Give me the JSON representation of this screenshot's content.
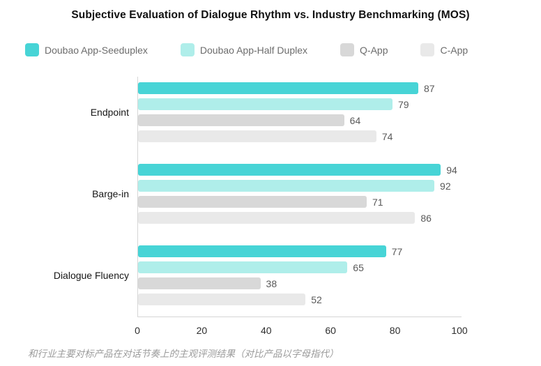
{
  "title": "Subjective Evaluation of Dialogue Rhythm vs. Industry Benchmarking (MOS)",
  "caption": "和行业主要对标产品在对话节奏上的主观评测结果（对比产品以字母指代）",
  "chart_data": {
    "type": "bar",
    "orientation": "horizontal",
    "title": "Subjective Evaluation of Dialogue Rhythm vs. Industry Benchmarking (MOS)",
    "categories": [
      "Endpoint",
      "Barge-in",
      "Dialogue Fluency"
    ],
    "series": [
      {
        "name": "Doubao App-Seeduplex",
        "color": "#47d4d6",
        "values": [
          87,
          94,
          77
        ]
      },
      {
        "name": "Doubao App-Half Duplex",
        "color": "#afeeea",
        "values": [
          79,
          92,
          65
        ]
      },
      {
        "name": "Q-App",
        "color": "#d8d8d8",
        "values": [
          64,
          71,
          38
        ]
      },
      {
        "name": "C-App",
        "color": "#e9e9e9",
        "values": [
          74,
          86,
          52
        ]
      }
    ],
    "x_ticks": [
      0,
      20,
      40,
      60,
      80,
      100
    ],
    "xlim": [
      0,
      100
    ],
    "grid": false,
    "legend_position": "top",
    "axis_line_color": "#d6d6d6",
    "value_label_color": "#595959"
  }
}
